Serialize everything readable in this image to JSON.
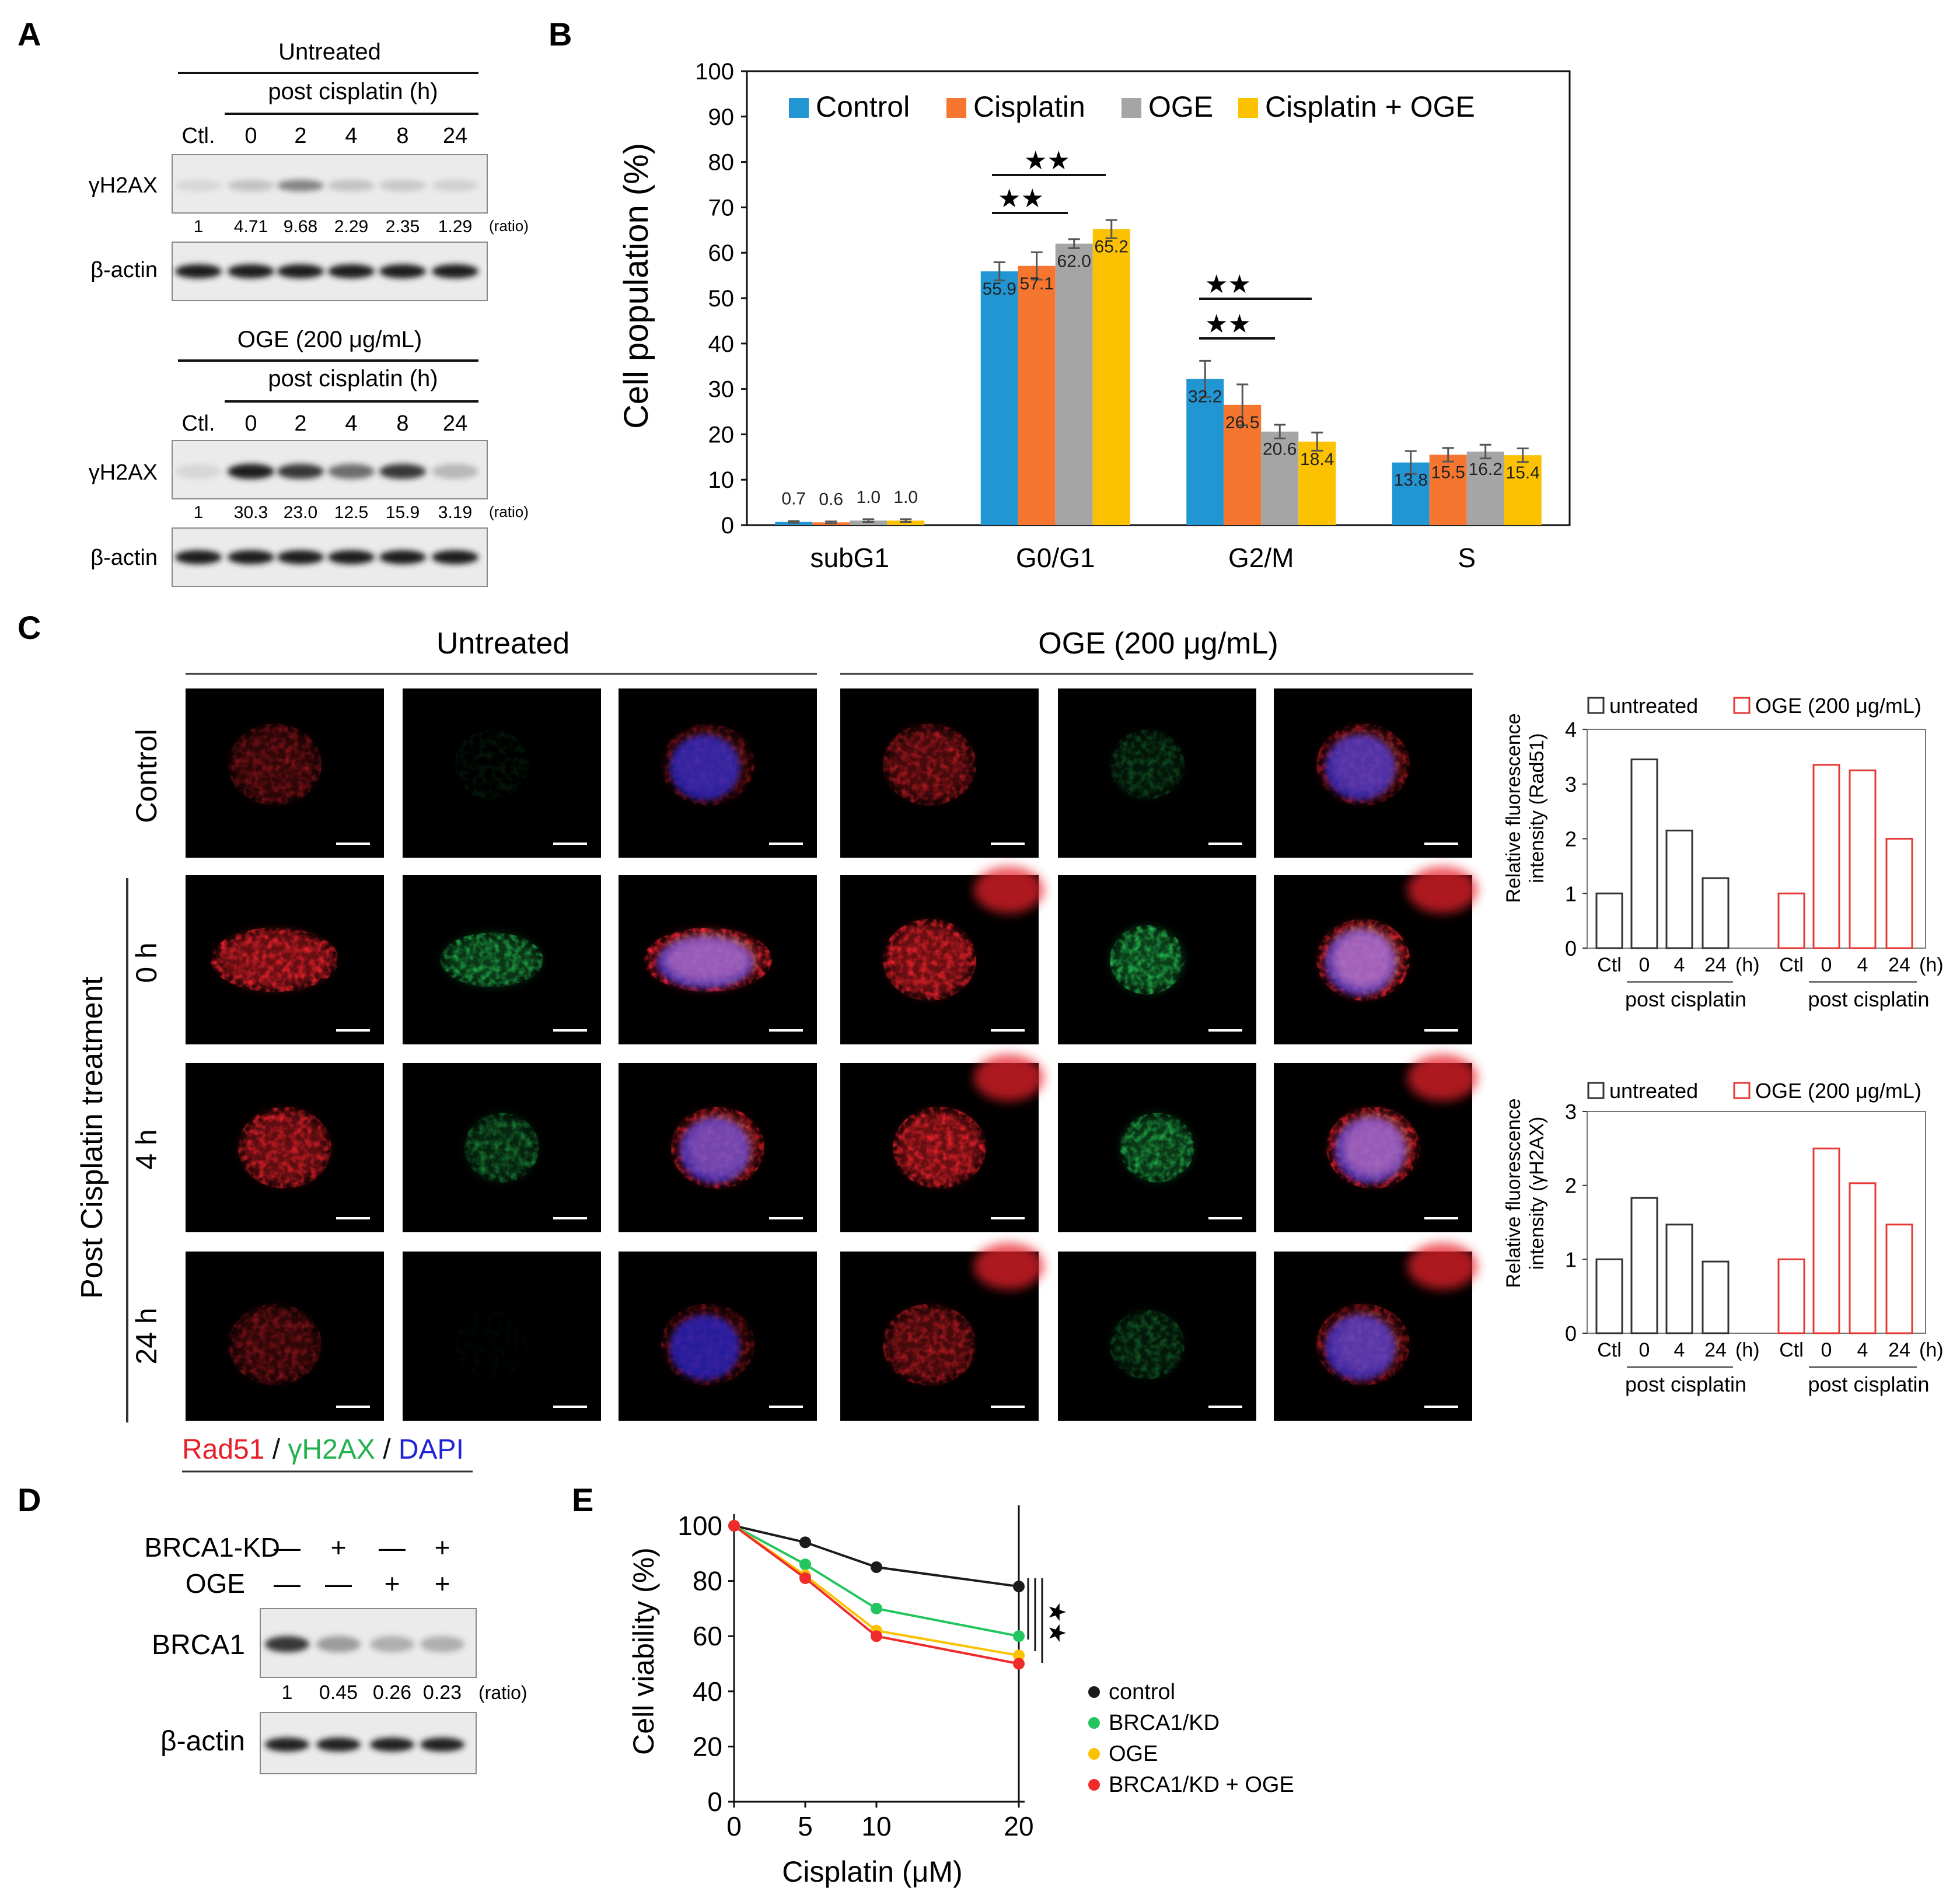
{
  "panel_labels": {
    "a": "A",
    "b": "B",
    "c": "C",
    "d": "D",
    "e": "E"
  },
  "panel_a": {
    "ratio_unit": "(ratio)",
    "blots": [
      {
        "group": "Untreated",
        "subtitle": "post cisplatin (h)",
        "lanes": [
          "Ctl.",
          "0",
          "2",
          "4",
          "8",
          "24"
        ],
        "protein": "γH2AX",
        "loading": "β-actin",
        "ratios": [
          "1",
          "4.71",
          "9.68",
          "2.29",
          "2.35",
          "1.29"
        ],
        "band_intensity": [
          0.05,
          0.15,
          0.45,
          0.15,
          0.12,
          0.08
        ]
      },
      {
        "group": "OGE (200 μg/mL)",
        "subtitle": "post cisplatin (h)",
        "lanes": [
          "Ctl.",
          "0",
          "2",
          "4",
          "8",
          "24"
        ],
        "protein": "γH2AX",
        "loading": "β-actin",
        "ratios": [
          "1",
          "30.3",
          "23.0",
          "12.5",
          "15.9",
          "3.19"
        ],
        "band_intensity": [
          0.05,
          0.95,
          0.8,
          0.55,
          0.8,
          0.2
        ]
      }
    ]
  },
  "chart_data": [
    {
      "id": "B",
      "type": "bar",
      "title": "",
      "ylabel": "Cell population (%)",
      "xlabel": "",
      "ylim": [
        0,
        100
      ],
      "yticks": [
        0,
        10,
        20,
        30,
        40,
        50,
        60,
        70,
        80,
        90,
        100
      ],
      "categories": [
        "subG1",
        "G0/G1",
        "G2/M",
        "S"
      ],
      "legend": "top",
      "series": [
        {
          "name": "Control",
          "color": "#2196d3",
          "values": [
            0.7,
            55.9,
            32.2,
            13.8
          ],
          "errors": [
            0.2,
            2.0,
            4.0,
            2.5
          ],
          "labels": [
            "0.7",
            "55.9",
            "32.2",
            "13.8"
          ]
        },
        {
          "name": "Cisplatin",
          "color": "#f7762f",
          "values": [
            0.6,
            57.1,
            26.5,
            15.5
          ],
          "errors": [
            0.2,
            3.0,
            4.5,
            1.5
          ],
          "labels": [
            "0.6",
            "57.1",
            "26.5",
            "15.5"
          ]
        },
        {
          "name": "OGE",
          "color": "#a5a5a5",
          "values": [
            1.0,
            62.0,
            20.6,
            16.2
          ],
          "errors": [
            0.3,
            1.0,
            1.5,
            1.5
          ],
          "labels": [
            "1.0",
            "62.0",
            "20.6",
            "16.2"
          ]
        },
        {
          "name": "Cisplatin + OGE",
          "color": "#fcc100",
          "values": [
            1.0,
            65.2,
            18.4,
            15.4
          ],
          "errors": [
            0.3,
            2.0,
            2.0,
            1.5
          ],
          "labels": [
            "1.0",
            "65.2",
            "18.4",
            "15.4"
          ]
        }
      ],
      "significance": "★★"
    },
    {
      "id": "C-top",
      "type": "bar",
      "ylabel": "Relative fluorescence intensity (Rad51)",
      "ylim": [
        0,
        4
      ],
      "yticks": [
        0,
        1,
        2,
        3,
        4
      ],
      "categories": [
        "Ctl",
        "0",
        "4",
        "24"
      ],
      "unit": "(h)",
      "group_label": "post cisplatin",
      "series": [
        {
          "name": "untreated",
          "color": "#333333",
          "values": [
            1.0,
            3.45,
            2.15,
            1.28
          ]
        },
        {
          "name": "OGE (200 μg/mL)",
          "color": "#e53935",
          "values": [
            1.0,
            3.35,
            3.25,
            2.0
          ]
        }
      ]
    },
    {
      "id": "C-bottom",
      "type": "bar",
      "ylabel": "Relative fluorescence intensity (γH2AX)",
      "ylim": [
        0,
        3
      ],
      "yticks": [
        0,
        1,
        2,
        3
      ],
      "categories": [
        "Ctl",
        "0",
        "4",
        "24"
      ],
      "unit": "(h)",
      "group_label": "post cisplatin",
      "series": [
        {
          "name": "untreated",
          "color": "#333333",
          "values": [
            1.0,
            1.83,
            1.47,
            0.97
          ]
        },
        {
          "name": "OGE (200 μg/mL)",
          "color": "#e53935",
          "values": [
            1.0,
            2.5,
            2.03,
            1.47
          ]
        }
      ]
    },
    {
      "id": "E",
      "type": "line",
      "xlabel": "Cisplatin (μM)",
      "ylabel": "Cell viability (%)",
      "x": [
        0,
        5,
        10,
        20
      ],
      "xticks": [
        0,
        5,
        10,
        20
      ],
      "ylim": [
        0,
        100
      ],
      "yticks": [
        0,
        20,
        40,
        60,
        80,
        100
      ],
      "series": [
        {
          "name": "control",
          "color": "#1b1b1b",
          "values": [
            100,
            94,
            85,
            78
          ]
        },
        {
          "name": "BRCA1/KD",
          "color": "#22c55e",
          "values": [
            100,
            86,
            70,
            60
          ]
        },
        {
          "name": "OGE",
          "color": "#fcc100",
          "values": [
            100,
            82,
            62,
            53
          ]
        },
        {
          "name": "BRCA1/KD + OGE",
          "color": "#ef2b2b",
          "values": [
            100,
            81,
            60,
            50
          ]
        }
      ],
      "significance": "★★"
    }
  ],
  "panel_c": {
    "col_groups": [
      "Untreated",
      "OGE (200 μg/mL)"
    ],
    "row_labels": [
      "Control",
      "0 h",
      "4 h",
      "24 h"
    ],
    "side_label": "Post Cisplatin treatment",
    "stain_legend": {
      "rad51": "Rad51",
      "sep1": " / ",
      "h2ax": "γH2AX",
      "sep2": " / ",
      "dapi": "DAPI"
    },
    "colors": {
      "rad51": "#e8202a",
      "h2ax": "#22b14c",
      "dapi": "#1f24d8"
    }
  },
  "panel_d": {
    "rows": [
      {
        "label": "BRCA1-KD",
        "signs": [
          "—",
          "+",
          "—",
          "+"
        ]
      },
      {
        "label": "OGE",
        "signs": [
          "—",
          "—",
          "+",
          "+"
        ]
      }
    ],
    "protein": "BRCA1",
    "loading": "β-actin",
    "ratios": [
      "1",
      "0.45",
      "0.26",
      "0.23"
    ],
    "ratio_unit": "(ratio)",
    "band_intensity": [
      0.85,
      0.35,
      0.25,
      0.25
    ]
  }
}
